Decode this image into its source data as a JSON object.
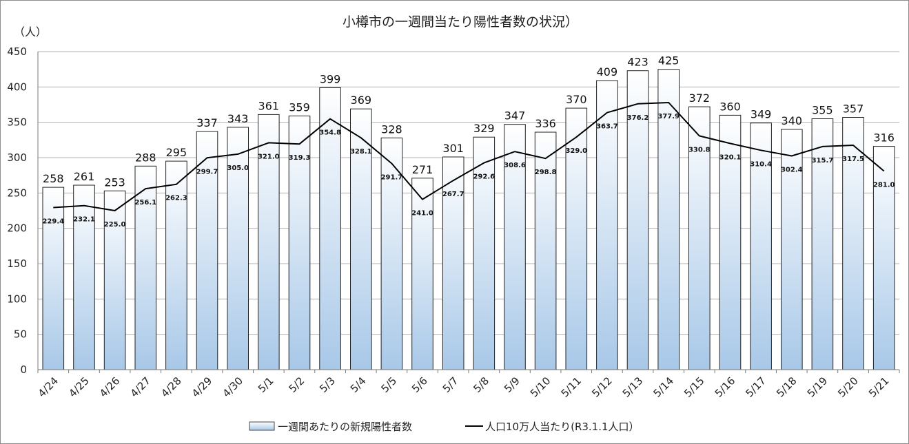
{
  "chart_data": {
    "type": "bar",
    "title": "小樽市の一週間当たり陽性者数の状況）",
    "unit_label": "（人）",
    "ylim": [
      0,
      450
    ],
    "yticks": [
      0,
      50,
      100,
      150,
      200,
      250,
      300,
      350,
      400,
      450
    ],
    "grid": true,
    "legend_position": "bottom",
    "categories": [
      "4/24",
      "4/25",
      "4/26",
      "4/27",
      "4/28",
      "4/29",
      "4/30",
      "5/1",
      "5/2",
      "5/3",
      "5/4",
      "5/5",
      "5/6",
      "5/7",
      "5/8",
      "5/9",
      "5/10",
      "5/11",
      "5/12",
      "5/13",
      "5/14",
      "5/15",
      "5/16",
      "5/17",
      "5/18",
      "5/19",
      "5/20",
      "5/21"
    ],
    "series": [
      {
        "name": "一週間あたりの新規陽性者数",
        "type": "bar",
        "values": [
          258,
          261,
          253,
          288,
          295,
          337,
          343,
          361,
          359,
          399,
          369,
          328,
          271,
          301,
          329,
          347,
          336,
          370,
          409,
          423,
          425,
          372,
          360,
          349,
          340,
          355,
          357,
          316
        ]
      },
      {
        "name": "人口10万人当たり(R3.1.1人口）",
        "type": "line",
        "color": "#000000",
        "values": [
          229.4,
          232.1,
          225.0,
          256.1,
          262.3,
          299.7,
          305.0,
          321.0,
          319.3,
          354.8,
          328.1,
          291.7,
          241.0,
          267.7,
          292.6,
          308.6,
          298.8,
          329.0,
          363.7,
          376.2,
          377.9,
          330.8,
          320.1,
          310.4,
          302.4,
          315.7,
          317.5,
          281.0
        ]
      }
    ],
    "colors": {
      "bar_top": "#ffffff",
      "bar_bottom": "#a8c8e8",
      "bar_border": "#222222",
      "grid": "#b0b0b0",
      "line": "#000000"
    }
  }
}
